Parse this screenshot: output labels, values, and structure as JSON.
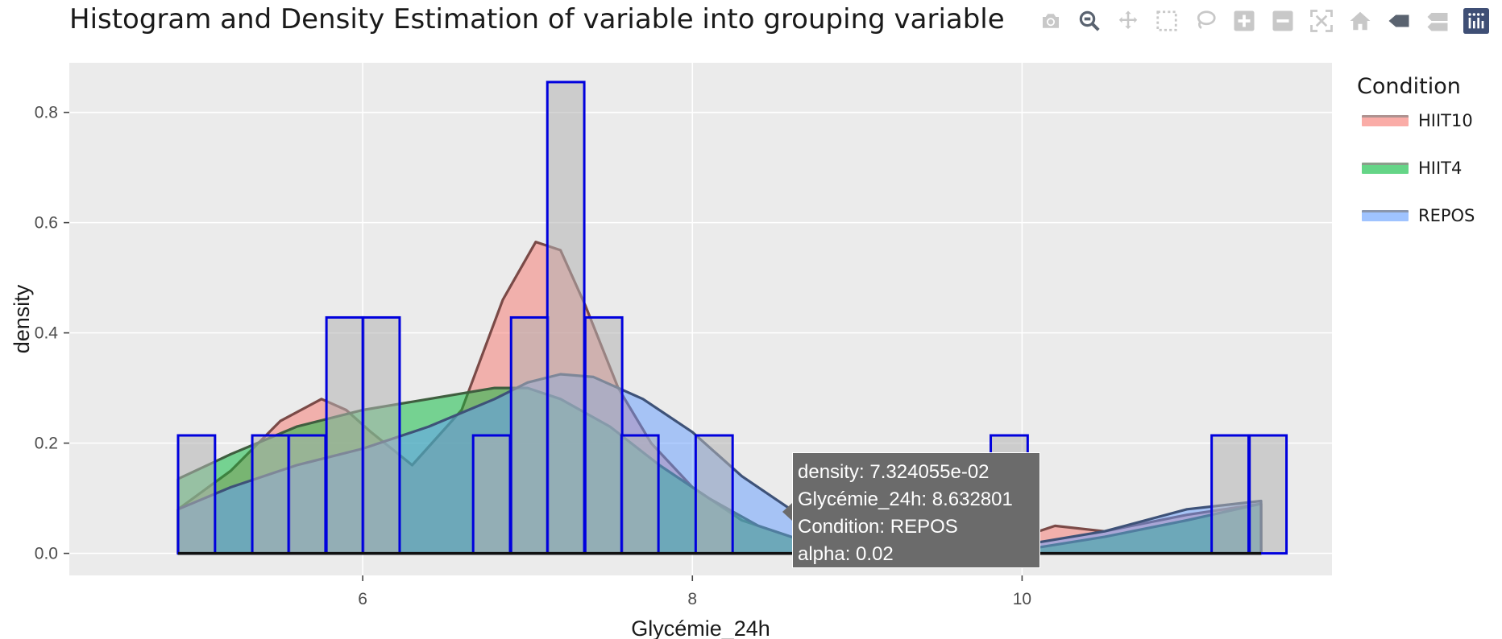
{
  "title": "Histogram and Density Estimation of variable into grouping variable",
  "modebar": {
    "buttons": [
      "camera-icon",
      "zoom-icon",
      "pan-icon",
      "box-select-icon",
      "lasso-select-icon",
      "zoom-in-icon",
      "zoom-out-icon",
      "autoscale-icon",
      "reset-axes-icon",
      "hover-closest-icon",
      "hover-compare-icon",
      "plotly-logo-icon"
    ]
  },
  "legend": {
    "title": "Condition",
    "items": [
      {
        "label": "HIIT10",
        "color": "#F8766D",
        "line": "#7a4a47"
      },
      {
        "label": "HIIT4",
        "color": "#00BA38",
        "line": "#3f5e3f"
      },
      {
        "label": "REPOS",
        "color": "#619CFF",
        "line": "#3e5278"
      }
    ]
  },
  "tooltip": {
    "line1": "density: 7.324055e-02",
    "line2": "Glycémie_24h:  8.632801",
    "line3": "Condition: REPOS",
    "line4": "alpha: 0.02"
  },
  "chart_data": {
    "type": "bar",
    "xlabel": "Glycémie_24h",
    "ylabel": "density",
    "xlim": [
      4.22,
      11.88
    ],
    "ylim": [
      -0.04,
      0.89
    ],
    "xticks": [
      6,
      8,
      10
    ],
    "yticks": [
      0.0,
      0.2,
      0.4,
      0.6,
      0.8
    ],
    "ytick_labels": [
      "0.0",
      "0.2",
      "0.4",
      "0.6",
      "0.8"
    ],
    "grid": true,
    "histogram": {
      "binwidth": 0.224,
      "bars": [
        {
          "x0": 4.88,
          "h": 0.214
        },
        {
          "x0": 5.33,
          "h": 0.214
        },
        {
          "x0": 5.55,
          "h": 0.214
        },
        {
          "x0": 5.78,
          "h": 0.428
        },
        {
          "x0": 6.0,
          "h": 0.428
        },
        {
          "x0": 6.67,
          "h": 0.214
        },
        {
          "x0": 6.9,
          "h": 0.428
        },
        {
          "x0": 7.12,
          "h": 0.855
        },
        {
          "x0": 7.35,
          "h": 0.428
        },
        {
          "x0": 7.57,
          "h": 0.214
        },
        {
          "x0": 8.02,
          "h": 0.214
        },
        {
          "x0": 9.81,
          "h": 0.214
        },
        {
          "x0": 11.15,
          "h": 0.214
        },
        {
          "x0": 11.38,
          "h": 0.214
        }
      ]
    },
    "series": [
      {
        "name": "HIIT10",
        "x": [
          4.88,
          5.2,
          5.5,
          5.75,
          5.9,
          6.05,
          6.3,
          6.6,
          6.85,
          7.05,
          7.2,
          7.35,
          7.55,
          7.75,
          8.0,
          8.3,
          8.6,
          9.0,
          9.5,
          10.0,
          10.2,
          10.5,
          11.0,
          11.45
        ],
        "y": [
          0.08,
          0.15,
          0.24,
          0.28,
          0.26,
          0.22,
          0.16,
          0.26,
          0.46,
          0.565,
          0.55,
          0.45,
          0.3,
          0.2,
          0.12,
          0.06,
          0.03,
          0.01,
          0.005,
          0.03,
          0.05,
          0.04,
          0.07,
          0.09
        ]
      },
      {
        "name": "HIIT4",
        "x": [
          4.88,
          5.2,
          5.6,
          6.0,
          6.4,
          6.8,
          7.0,
          7.2,
          7.5,
          7.8,
          8.1,
          8.4,
          8.7,
          9.0,
          9.5,
          10.0,
          10.5,
          11.0,
          11.45
        ],
        "y": [
          0.135,
          0.18,
          0.23,
          0.26,
          0.28,
          0.3,
          0.3,
          0.28,
          0.23,
          0.16,
          0.1,
          0.05,
          0.02,
          0.008,
          0.003,
          0.006,
          0.03,
          0.06,
          0.09
        ]
      },
      {
        "name": "REPOS",
        "x": [
          4.88,
          5.2,
          5.6,
          6.0,
          6.4,
          6.8,
          7.0,
          7.2,
          7.4,
          7.7,
          8.0,
          8.3,
          8.63,
          9.0,
          9.5,
          10.0,
          10.5,
          11.0,
          11.45
        ],
        "y": [
          0.08,
          0.12,
          0.16,
          0.19,
          0.23,
          0.28,
          0.31,
          0.325,
          0.32,
          0.28,
          0.22,
          0.14,
          0.073,
          0.03,
          0.015,
          0.015,
          0.04,
          0.08,
          0.095
        ]
      }
    ]
  }
}
